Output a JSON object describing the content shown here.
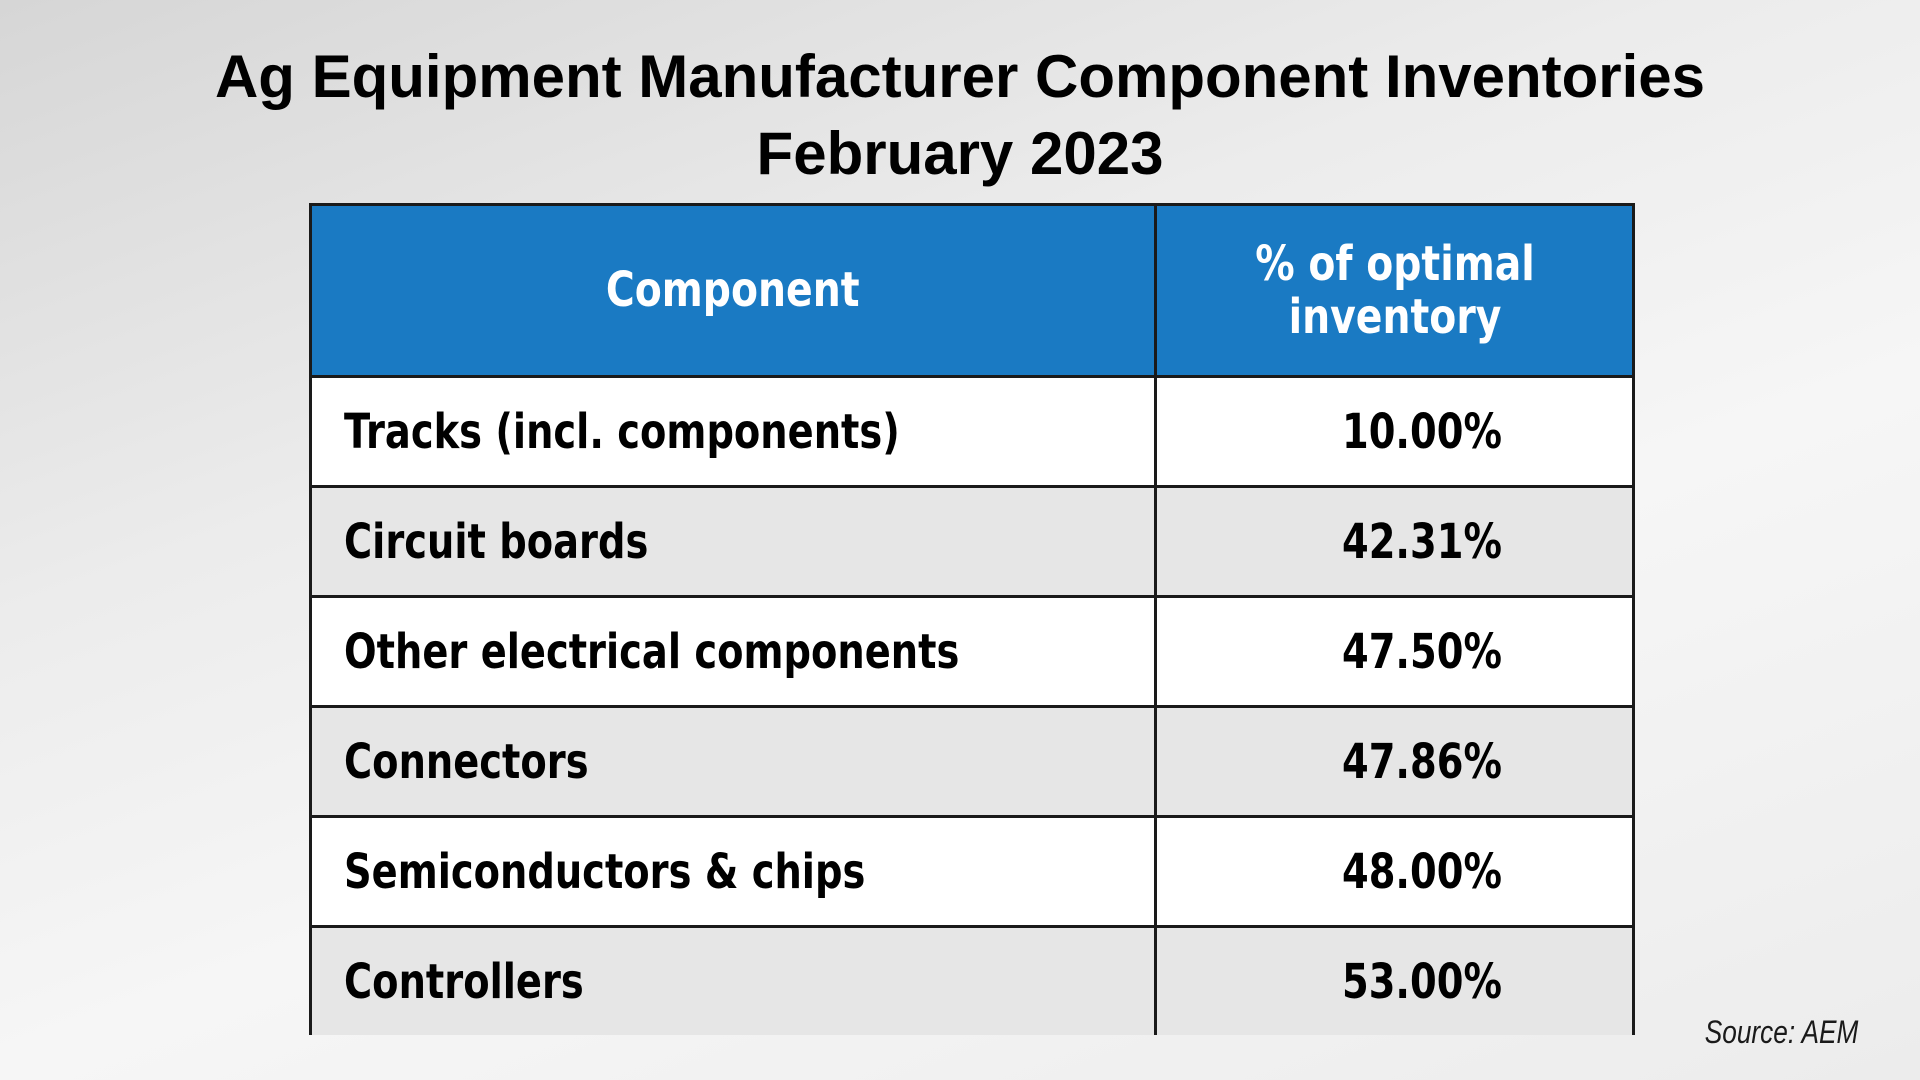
{
  "colors": {
    "header_bg": "#1a7ac3",
    "row_white": "#ffffff",
    "row_gray": "#e6e6e6",
    "border": "#1a1a1a",
    "header_text": "#ffffff"
  },
  "chart_data": {
    "type": "table",
    "title": "Ag Equipment Manufacturer Component Inventories",
    "subtitle": "February 2023",
    "columns": [
      "Component",
      "% of optimal inventory"
    ],
    "rows": [
      {
        "component": "Tracks (incl. components)",
        "value_label": "10.00%",
        "value": 10.0
      },
      {
        "component": "Circuit boards",
        "value_label": "42.31%",
        "value": 42.31
      },
      {
        "component": "Other electrical components",
        "value_label": "47.50%",
        "value": 47.5
      },
      {
        "component": "Connectors",
        "value_label": "47.86%",
        "value": 47.86
      },
      {
        "component": "Semiconductors & chips",
        "value_label": "48.00%",
        "value": 48.0
      },
      {
        "component": "Controllers",
        "value_label": "53.00%",
        "value": 53.0
      }
    ],
    "source": "Source: AEM"
  }
}
